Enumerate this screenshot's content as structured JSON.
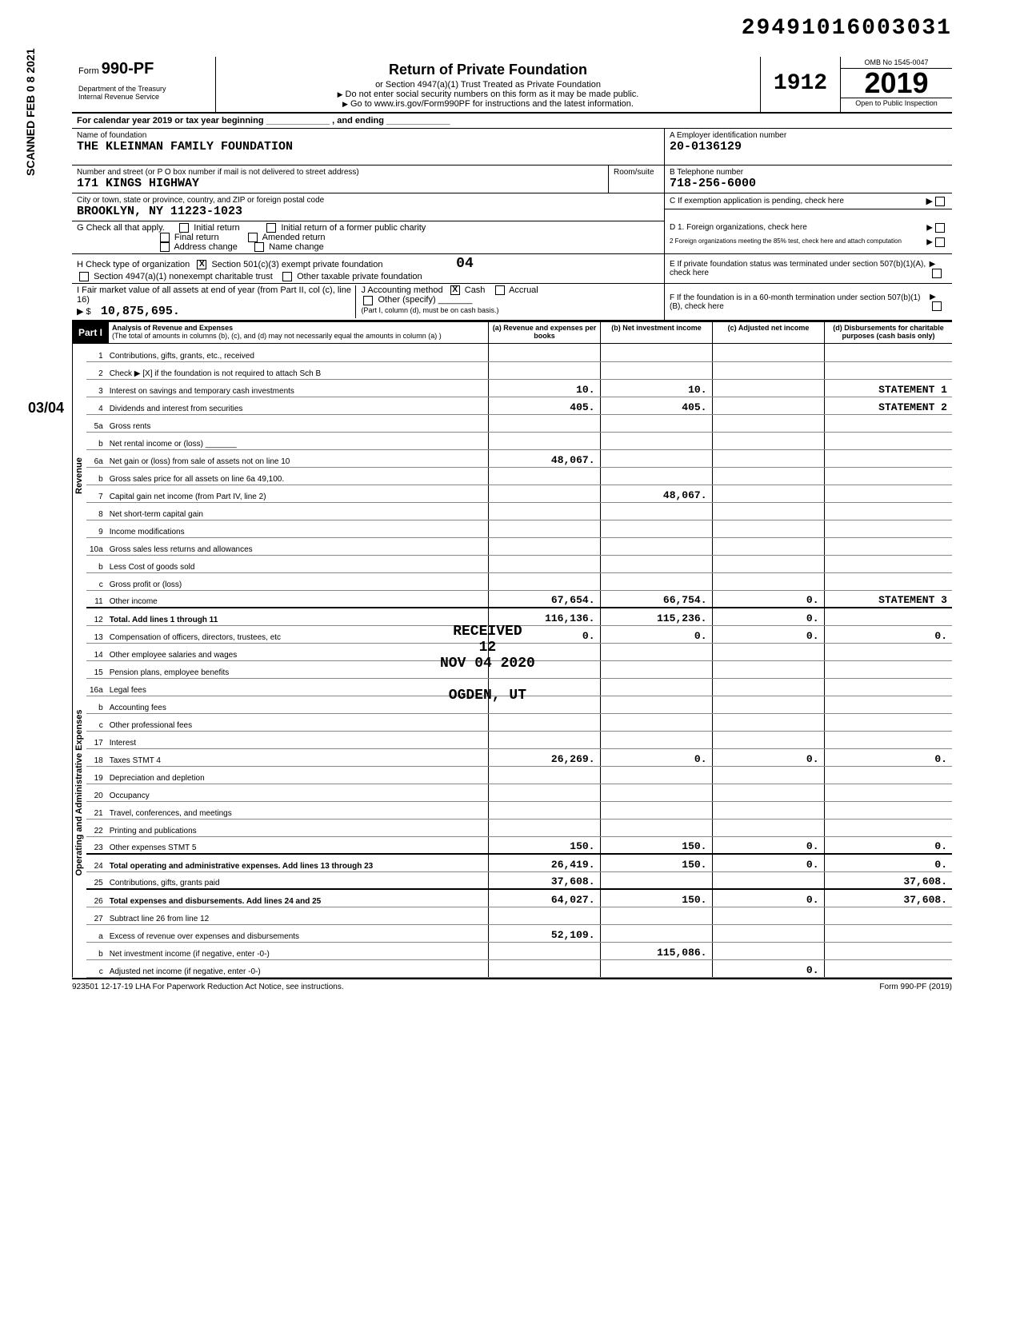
{
  "document_id": "29491016003031",
  "scan_side_text": "SCANNED FEB 0 8 2021",
  "scan_side_fraction": "03/04",
  "form": {
    "form_number_prefix": "Form",
    "form_number": "990-PF",
    "dept": "Department of the Treasury",
    "irs": "Internal Revenue Service",
    "title": "Return of Private Foundation",
    "subtitle": "or Section 4947(a)(1) Trust Treated as Private Foundation",
    "warn1": "Do not enter social security numbers on this form as it may be made public.",
    "warn2": "Go to www.irs.gov/Form990PF for instructions and the latest information.",
    "code_box": "1912",
    "omb": "OMB No  1545-0047",
    "year": "2019",
    "inspection": "Open to Public Inspection"
  },
  "cal_year_line": "For calendar year 2019 or tax year beginning _____________ , and ending _____________",
  "foundation": {
    "name_label": "Name of foundation",
    "name": "THE KLEINMAN FAMILY FOUNDATION",
    "addr_label": "Number and street (or P O box number if mail is not delivered to street address)",
    "street": "171 KINGS HIGHWAY",
    "room_label": "Room/suite",
    "city_label": "City or town, state or province, country, and ZIP or foreign postal code",
    "city": "BROOKLYN, NY   11223-1023"
  },
  "boxA": {
    "label": "A  Employer identification number",
    "value": "20-0136129"
  },
  "boxB": {
    "label": "B  Telephone number",
    "value": "718-256-6000"
  },
  "boxC": {
    "label": "C  If exemption application is pending, check here"
  },
  "boxD": {
    "label1": "D  1. Foreign organizations, check here",
    "label2": "2  Foreign organizations meeting the 85% test, check here and attach computation"
  },
  "boxE": {
    "label": "E  If private foundation status was terminated under section 507(b)(1)(A), check here"
  },
  "boxF": {
    "label": "F  If the foundation is in a 60-month termination under section 507(b)(1)(B), check here"
  },
  "lineG": {
    "label": "G  Check all that apply.",
    "opts": [
      "Initial return",
      "Final return",
      "Address change",
      "Initial return of a former public charity",
      "Amended return",
      "Name change"
    ]
  },
  "lineH": {
    "label": "H  Check type of organization",
    "opt1": "Section 501(c)(3) exempt private foundation",
    "opt1_checked": "X",
    "opt2": "Section 4947(a)(1) nonexempt charitable trust",
    "opt3": "Other taxable private foundation",
    "code": "04"
  },
  "lineI": {
    "label": "I  Fair market value of all assets at end of year (from Part II, col  (c), line 16)",
    "amount": "10,875,695.",
    "note": "(Part I, column (d), must be on cash basis.)"
  },
  "lineJ": {
    "label": "J  Accounting method",
    "cash": "Cash",
    "cash_checked": "X",
    "accrual": "Accrual",
    "other": "Other (specify)"
  },
  "part1": {
    "label": "Part I",
    "title": "Analysis of Revenue and Expenses",
    "sub": "(The total of amounts in columns (b), (c), and (d) may not necessarily equal the amounts in column (a) )",
    "col_a": "(a) Revenue and expenses per books",
    "col_b": "(b) Net investment income",
    "col_c": "(c) Adjusted net income",
    "col_d": "(d) Disbursements for charitable purposes (cash basis only)"
  },
  "side_labels": {
    "revenue": "Revenue",
    "expenses": "Operating and Administrative Expenses"
  },
  "lines": [
    {
      "no": "1",
      "desc": "Contributions, gifts, grants, etc., received"
    },
    {
      "no": "2",
      "desc": "Check ▶ [X] if the foundation is not required to attach Sch  B"
    },
    {
      "no": "3",
      "desc": "Interest on savings and temporary cash investments",
      "a": "10.",
      "b": "10.",
      "d": "STATEMENT 1"
    },
    {
      "no": "4",
      "desc": "Dividends and interest from securities",
      "a": "405.",
      "b": "405.",
      "d": "STATEMENT 2"
    },
    {
      "no": "5a",
      "desc": "Gross rents"
    },
    {
      "no": "b",
      "desc": "Net rental income or (loss) _______"
    },
    {
      "no": "6a",
      "desc": "Net gain or (loss) from sale of assets not on line 10",
      "a": "48,067."
    },
    {
      "no": "b",
      "desc": "Gross sales price for all assets on line 6a    49,100."
    },
    {
      "no": "7",
      "desc": "Capital gain net income (from Part IV, line 2)",
      "b": "48,067."
    },
    {
      "no": "8",
      "desc": "Net short-term capital gain"
    },
    {
      "no": "9",
      "desc": "Income modifications"
    },
    {
      "no": "10a",
      "desc": "Gross sales less returns and allowances"
    },
    {
      "no": "b",
      "desc": "Less  Cost of goods sold"
    },
    {
      "no": "c",
      "desc": "Gross profit or (loss)"
    },
    {
      "no": "11",
      "desc": "Other income",
      "a": "67,654.",
      "b": "66,754.",
      "c": "0.",
      "d": "STATEMENT 3"
    },
    {
      "no": "12",
      "desc": "Total. Add lines 1 through 11",
      "a": "116,136.",
      "b": "115,236.",
      "c": "0.",
      "bold": true
    },
    {
      "no": "13",
      "desc": "Compensation of officers, directors, trustees, etc",
      "a": "0.",
      "b": "0.",
      "c": "0.",
      "d": "0."
    },
    {
      "no": "14",
      "desc": "Other employee salaries and wages"
    },
    {
      "no": "15",
      "desc": "Pension plans, employee benefits"
    },
    {
      "no": "16a",
      "desc": "Legal fees"
    },
    {
      "no": "b",
      "desc": "Accounting fees"
    },
    {
      "no": "c",
      "desc": "Other professional fees"
    },
    {
      "no": "17",
      "desc": "Interest"
    },
    {
      "no": "18",
      "desc": "Taxes                          STMT 4",
      "a": "26,269.",
      "b": "0.",
      "c": "0.",
      "d": "0."
    },
    {
      "no": "19",
      "desc": "Depreciation and depletion"
    },
    {
      "no": "20",
      "desc": "Occupancy"
    },
    {
      "no": "21",
      "desc": "Travel, conferences, and meetings"
    },
    {
      "no": "22",
      "desc": "Printing and publications"
    },
    {
      "no": "23",
      "desc": "Other expenses                 STMT 5",
      "a": "150.",
      "b": "150.",
      "c": "0.",
      "d": "0."
    },
    {
      "no": "24",
      "desc": "Total operating and administrative expenses. Add lines 13 through 23",
      "a": "26,419.",
      "b": "150.",
      "c": "0.",
      "d": "0.",
      "bold": true
    },
    {
      "no": "25",
      "desc": "Contributions, gifts, grants paid",
      "a": "37,608.",
      "d": "37,608."
    },
    {
      "no": "26",
      "desc": "Total expenses and disbursements. Add lines 24 and 25",
      "a": "64,027.",
      "b": "150.",
      "c": "0.",
      "d": "37,608.",
      "bold": true
    },
    {
      "no": "27",
      "desc": "Subtract line 26 from line 12"
    },
    {
      "no": "a",
      "desc": "Excess of revenue over expenses and disbursements",
      "a": "52,109."
    },
    {
      "no": "b",
      "desc": "Net investment income (if negative, enter -0-)",
      "b": "115,086."
    },
    {
      "no": "c",
      "desc": "Adjusted net income (if negative, enter -0-)",
      "c": "0."
    }
  ],
  "received_stamp": {
    "l1": "RECEIVED",
    "l2": "12",
    "l3": "NOV 04 2020",
    "l4": "OGDEN, UT"
  },
  "footer": {
    "left": "923501  12-17-19   LHA  For Paperwork Reduction Act Notice, see instructions.",
    "right": "Form 990-PF (2019)"
  },
  "colors": {
    "text": "#000000",
    "bg": "#ffffff",
    "shaded": "#cccccc",
    "part_bg": "#000000",
    "part_fg": "#ffffff"
  }
}
